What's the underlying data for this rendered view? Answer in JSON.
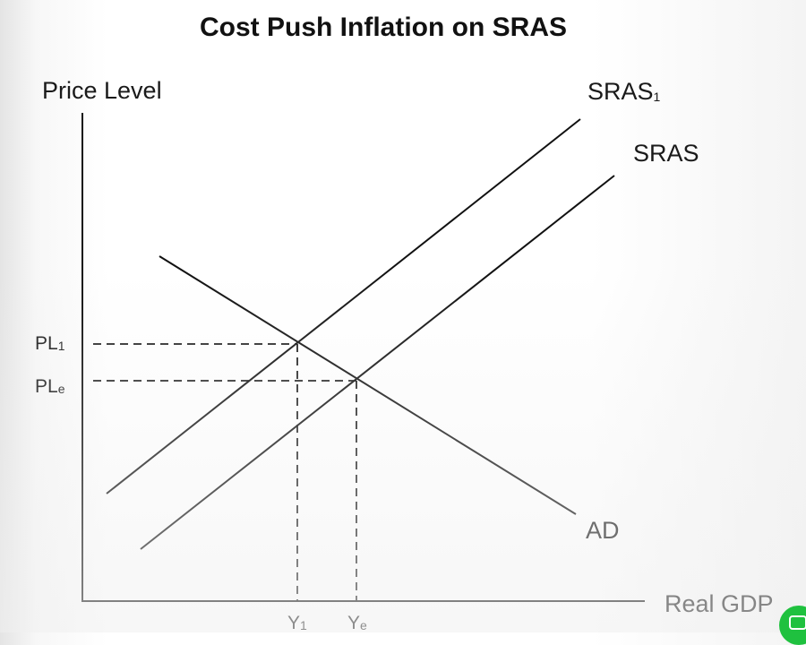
{
  "diagram": {
    "title": "Cost Push Inflation on SRAS",
    "y_axis_label": "Price Level",
    "x_axis_label": "Real GDP",
    "curves": {
      "sras1": {
        "label": "SRAS",
        "subscript": "1"
      },
      "sras": {
        "label": "SRAS",
        "subscript": ""
      },
      "ad": {
        "label": "AD",
        "subscript": ""
      }
    },
    "price_ticks": {
      "pl1": {
        "label": "PL",
        "subscript": "1"
      },
      "ple": {
        "label": "PL",
        "subscript": "e"
      }
    },
    "output_ticks": {
      "y1": {
        "label": "Y",
        "subscript": "1"
      },
      "ye": {
        "label": "Y",
        "subscript": "e"
      }
    }
  },
  "widget": {
    "chat_icon": "chat-bubble-icon",
    "chat_color": "#1fc13f"
  }
}
